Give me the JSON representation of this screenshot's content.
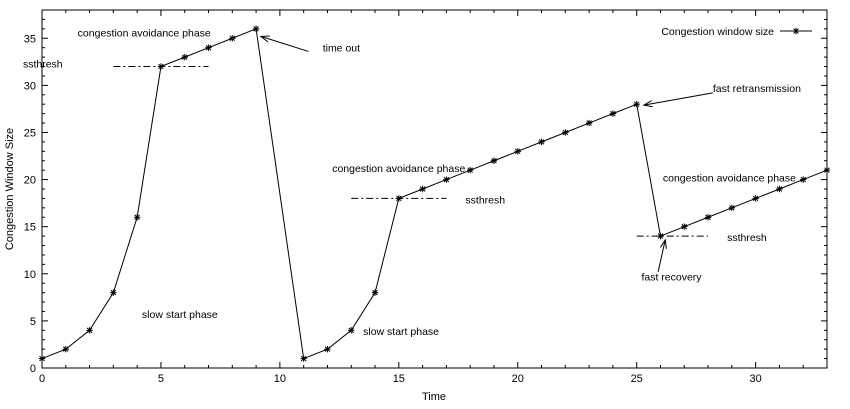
{
  "chart_data": {
    "type": "line",
    "title": "",
    "xlabel": "Time",
    "ylabel": "Congestion Window Size",
    "xlim": [
      0,
      33
    ],
    "ylim": [
      0,
      38
    ],
    "xticks": [
      0,
      5,
      10,
      15,
      20,
      25,
      30
    ],
    "yticks": [
      0,
      5,
      10,
      15,
      20,
      25,
      30,
      35
    ],
    "grid": false,
    "legend_position": "top-right",
    "series": [
      {
        "name": "Congestion window size",
        "x": [
          0,
          1,
          2,
          3,
          4,
          5,
          6,
          7,
          8,
          9,
          11,
          12,
          13,
          14,
          15,
          16,
          17,
          18,
          19,
          20,
          21,
          22,
          23,
          24,
          25,
          26,
          27,
          28,
          29,
          30,
          31,
          32,
          33
        ],
        "y": [
          1,
          2,
          4,
          8,
          16,
          32,
          33,
          34,
          35,
          36,
          1,
          2,
          4,
          8,
          18,
          19,
          20,
          21,
          22,
          23,
          24,
          25,
          26,
          27,
          28,
          14,
          15,
          16,
          17,
          18,
          19,
          20,
          21
        ]
      }
    ],
    "thresholds": [
      {
        "label": "ssthresh",
        "y": 32,
        "x_range": [
          3,
          7
        ]
      },
      {
        "label": "ssthresh",
        "y": 18,
        "x_range": [
          13,
          17
        ]
      },
      {
        "label": "ssthresh",
        "y": 14,
        "x_range": [
          25,
          28
        ]
      }
    ],
    "annotations": [
      {
        "text": "congestion avoidance phase",
        "x": 1.5,
        "y": 35.2
      },
      {
        "text": "ssthresh",
        "x": -0.8,
        "y": 31.9
      },
      {
        "text": "time out",
        "x": 11.8,
        "y": 33.6
      },
      {
        "text": "slow start phase",
        "x": 4.2,
        "y": 5.3
      },
      {
        "text": "congestion avoidance phase",
        "x": 12.2,
        "y": 20.8
      },
      {
        "text": "fast retransmission",
        "x": 28.2,
        "y": 29.3
      },
      {
        "text": "congestion avoidance phase",
        "x": 26.1,
        "y": 19.8
      },
      {
        "text": "fast recovery",
        "x": 25.2,
        "y": 9.3
      },
      {
        "text": "slow start phase",
        "x": 13.5,
        "y": 3.5
      }
    ],
    "arrows": [
      {
        "from": [
          11.2,
          33.6
        ],
        "to": [
          9.2,
          35.2
        ]
      },
      {
        "from": [
          28.2,
          29.2
        ],
        "to": [
          25.3,
          27.9
        ]
      },
      {
        "from": [
          25.9,
          10.2
        ],
        "to": [
          26.2,
          13.6
        ]
      }
    ],
    "threshold_labels": [
      {
        "text": "ssthresh",
        "x": 17.8,
        "y": 17.9
      },
      {
        "text": "ssthresh",
        "x": 28.8,
        "y": 13.9
      }
    ]
  }
}
